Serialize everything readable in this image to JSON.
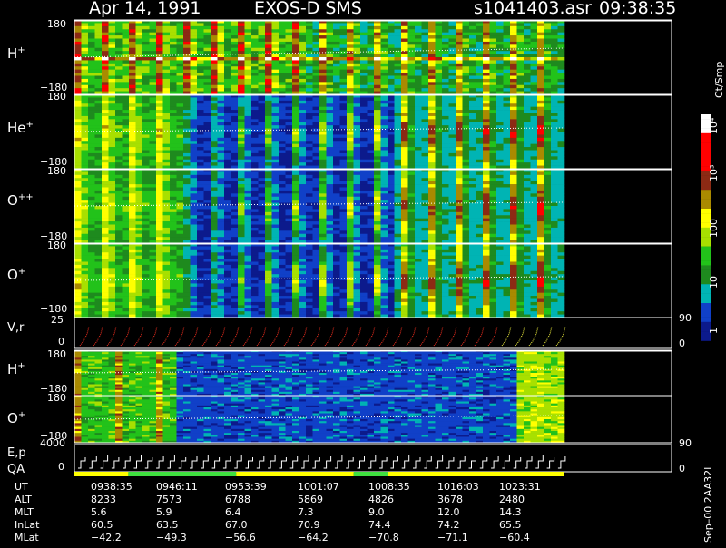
{
  "header": {
    "date": "Apr 14, 1991",
    "instrument": "EXOS-D SMS",
    "file": "s1041403.asr",
    "time": "09:38:35"
  },
  "colorbar": {
    "unit_label": "Ct/Smp",
    "ticks": [
      "10⁴",
      "10³",
      "100",
      "10",
      "1"
    ],
    "colors": [
      "#ffffff",
      "#ff0000",
      "#8c2a14",
      "#aa8a00",
      "#ffff00",
      "#a8e000",
      "#22c21a",
      "#1e8a1e",
      "#00b4b4",
      "#1040c8",
      "#0c1a8c"
    ]
  },
  "panels": [
    {
      "label": "H+",
      "ion": "H",
      "charge": "+",
      "ytop": "180",
      "ybottom": "−180"
    },
    {
      "label": "He+",
      "ion": "He",
      "charge": "+",
      "ytop": "180",
      "ybottom": "−180"
    },
    {
      "label": "O++",
      "ion": "O",
      "charge": "++",
      "ytop": "180",
      "ybottom": "−180"
    },
    {
      "label": "O+",
      "ion": "O",
      "charge": "+",
      "ytop": "180",
      "ybottom": "−180"
    }
  ],
  "vr_panel": {
    "label": "V,r",
    "ytop": "25",
    "ybottom": "0",
    "right_top": "90",
    "right_bottom": "0"
  },
  "panels2": [
    {
      "label": "H+",
      "ion": "H",
      "charge": "+",
      "ytop": "180",
      "ybottom": "−180"
    },
    {
      "label": "O+",
      "ion": "O",
      "charge": "+",
      "ytop": "180",
      "ybottom": "−180"
    }
  ],
  "ep_panel": {
    "label1": "E,p",
    "label2": "QA",
    "ytop": "4000",
    "ybottom": "0",
    "right_top": "90",
    "right_bottom": "0"
  },
  "ephemeris": {
    "labels": [
      "UT",
      "ALT",
      "MLT",
      "InLat",
      "MLat"
    ],
    "columns": [
      {
        "UT": "0938:35",
        "ALT": "8233",
        "MLT": "5.6",
        "InLat": "60.5",
        "MLat": "−42.2"
      },
      {
        "UT": "0946:11",
        "ALT": "7573",
        "MLT": "5.9",
        "InLat": "63.5",
        "MLat": "−49.3"
      },
      {
        "UT": "0953:39",
        "ALT": "6788",
        "MLT": "6.4",
        "InLat": "67.0",
        "MLat": "−56.6"
      },
      {
        "UT": "1001:07",
        "ALT": "5869",
        "MLT": "7.3",
        "InLat": "70.9",
        "MLat": "−64.2"
      },
      {
        "UT": "1008:35",
        "ALT": "4826",
        "MLT": "9.0",
        "InLat": "74.4",
        "MLat": "−70.8"
      },
      {
        "UT": "1016:03",
        "ALT": "3678",
        "MLT": "12.0",
        "InLat": "74.2",
        "MLat": "−71.1"
      },
      {
        "UT": "1023:31",
        "ALT": "2480",
        "MLT": "14.3",
        "InLat": "65.5",
        "MLat": "−60.4"
      }
    ]
  },
  "footer": {
    "version": "Sep–00 2AA32L"
  },
  "chart_data": {
    "type": "heatmap",
    "title": "Apr 14, 1991    EXOS-D SMS",
    "x_ticks_ut": [
      "0938:35",
      "0946:11",
      "0953:39",
      "1001:07",
      "1008:35",
      "1016:03",
      "1023:31"
    ],
    "y_range_pitch_panels": [
      -180,
      180
    ],
    "color_scale": "log",
    "color_range": [
      1,
      10000
    ],
    "series": [
      {
        "name": "H+",
        "dominant_intensity": "high",
        "note_band": "continuous intense bands near 0"
      },
      {
        "name": "He+",
        "dominant_intensity": "medium"
      },
      {
        "name": "O++",
        "dominant_intensity": "medium"
      },
      {
        "name": "O+",
        "dominant_intensity": "medium"
      }
    ]
  }
}
